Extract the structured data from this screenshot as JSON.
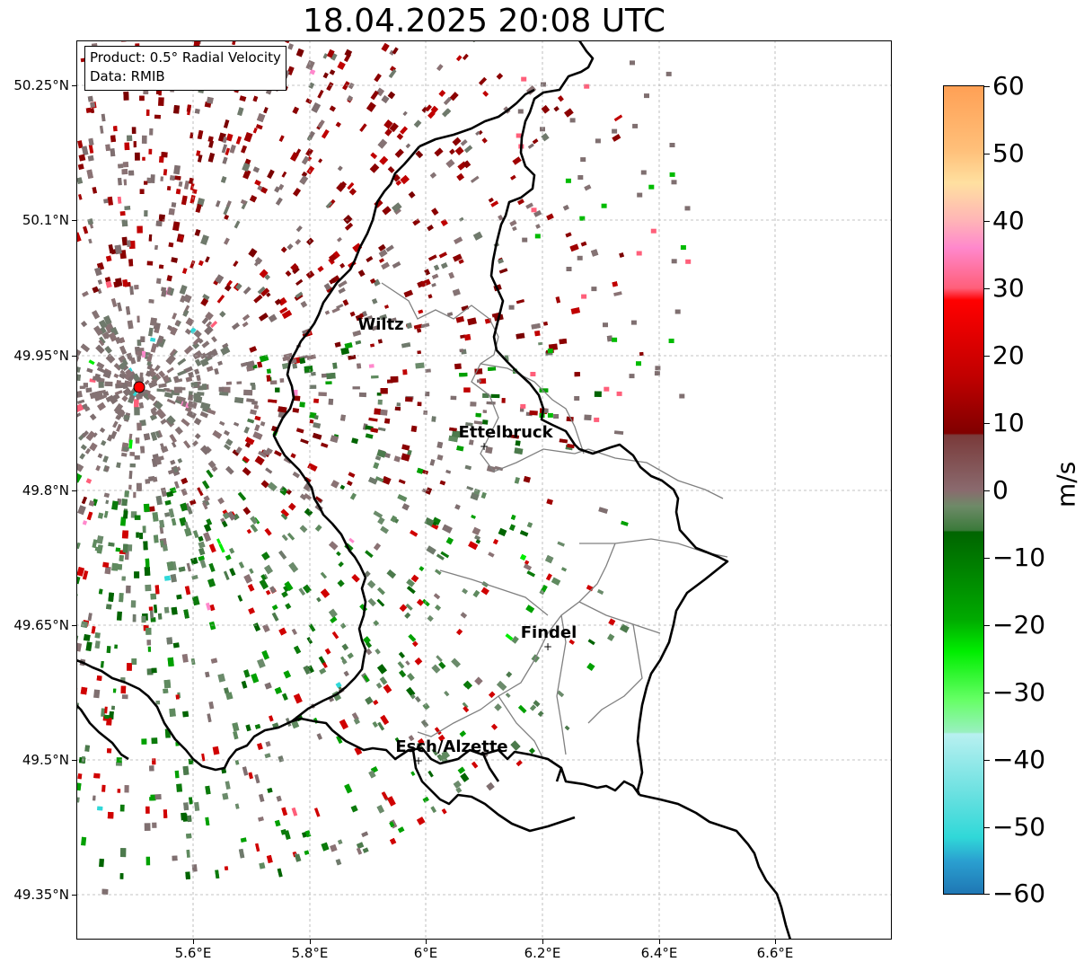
{
  "title": "18.04.2025 20:08 UTC",
  "info": {
    "product": "Product: 0.5° Radial Velocity",
    "source": "Data: RMIB"
  },
  "latitude_labels": [
    "50.25°N",
    "50.1°N",
    "49.95°N",
    "49.8°N",
    "49.65°N",
    "49.5°N",
    "49.35°N"
  ],
  "longitude_labels": [
    "5.6°E",
    "5.8°E",
    "6°E",
    "6.2°E",
    "6.4°E",
    "6.6°E"
  ],
  "cities": [
    {
      "name": "Wiltz"
    },
    {
      "name": "Ettelbruck"
    },
    {
      "name": "Findel"
    },
    {
      "name": "Esch/Alzette"
    }
  ],
  "colorbar": {
    "unit": "m/s",
    "tick_labels": [
      "60",
      "50",
      "40",
      "30",
      "20",
      "10",
      "0",
      "−10",
      "−20",
      "−30",
      "−40",
      "−50",
      "−60"
    ],
    "range": [
      -60,
      60
    ]
  },
  "colors": {
    "radar_site": "#ff0000",
    "border_country": "#000000",
    "border_district": "#808080"
  }
}
